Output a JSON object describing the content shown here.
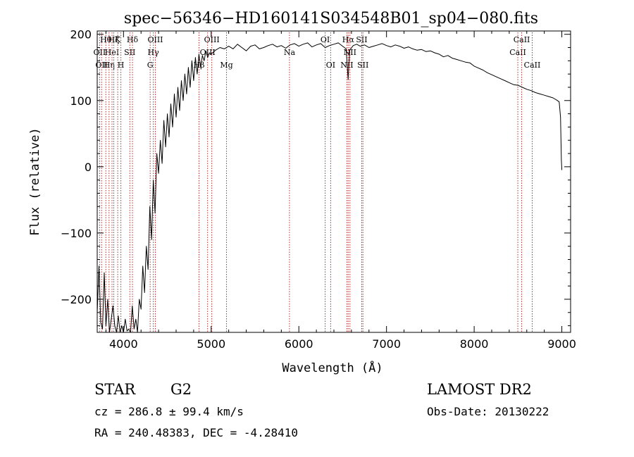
{
  "chart_data": {
    "type": "line",
    "title": "spec−56346−HD160141S034548B01_sp04−080.fits",
    "xlabel": "Wavelength (Å)",
    "ylabel": "Flux (relative)",
    "xlim": [
      3700,
      9100
    ],
    "ylim": [
      -250,
      205
    ],
    "x_ticks": [
      4000,
      5000,
      6000,
      7000,
      8000,
      9000
    ],
    "x_tick_labels": [
      "4000",
      "5000",
      "6000",
      "7000",
      "8000",
      "9000"
    ],
    "y_ticks": [
      -200,
      -100,
      0,
      100,
      200
    ],
    "y_tick_labels": [
      "−200",
      "−100",
      "0",
      "100",
      "200"
    ],
    "grid": false,
    "line_color": "#000000",
    "marker_color": "#b03030",
    "series": [
      {
        "x": [
          3700,
          3720,
          3740,
          3760,
          3780,
          3800,
          3820,
          3840,
          3860,
          3880,
          3900,
          3920,
          3940,
          3960,
          3980,
          4000,
          4020,
          4040,
          4060,
          4080,
          4100,
          4120,
          4140,
          4160,
          4180,
          4200,
          4220,
          4240,
          4260,
          4280,
          4300,
          4320,
          4340,
          4360,
          4380,
          4400,
          4420,
          4440,
          4460,
          4480,
          4500,
          4520,
          4540,
          4560,
          4580,
          4600,
          4620,
          4640,
          4660,
          4680,
          4700,
          4720,
          4740,
          4760,
          4780,
          4800,
          4820,
          4840,
          4860,
          4880,
          4900,
          4920,
          4940,
          4960,
          4980,
          5000,
          5050,
          5100,
          5150,
          5200,
          5250,
          5300,
          5350,
          5400,
          5450,
          5500,
          5550,
          5600,
          5650,
          5700,
          5750,
          5800,
          5850,
          5900,
          5950,
          6000,
          6050,
          6100,
          6150,
          6200,
          6250,
          6300,
          6350,
          6400,
          6450,
          6500,
          6540,
          6562,
          6580,
          6620,
          6660,
          6700,
          6750,
          6800,
          6850,
          6900,
          6950,
          7000,
          7050,
          7100,
          7150,
          7200,
          7250,
          7300,
          7350,
          7400,
          7450,
          7500,
          7550,
          7600,
          7650,
          7700,
          7750,
          7800,
          7850,
          7900,
          7950,
          8000,
          8050,
          8100,
          8150,
          8200,
          8250,
          8300,
          8350,
          8400,
          8450,
          8500,
          8550,
          8600,
          8650,
          8700,
          8750,
          8800,
          8850,
          8900,
          8950,
          8970,
          8985,
          8995,
          9000
        ],
        "y": [
          -220,
          -150,
          -235,
          -245,
          -160,
          -240,
          -200,
          -250,
          -230,
          -210,
          -240,
          -250,
          -225,
          -250,
          -240,
          -250,
          -230,
          -248,
          -245,
          -250,
          -210,
          -245,
          -230,
          -250,
          -200,
          -215,
          -150,
          -190,
          -120,
          -155,
          -60,
          -110,
          -20,
          -70,
          20,
          -10,
          40,
          5,
          70,
          30,
          80,
          45,
          95,
          60,
          110,
          75,
          120,
          85,
          130,
          100,
          140,
          110,
          150,
          120,
          160,
          130,
          165,
          140,
          170,
          150,
          168,
          160,
          175,
          165,
          172,
          170,
          176,
          180,
          178,
          182,
          178,
          185,
          180,
          175,
          182,
          184,
          178,
          180,
          183,
          185,
          181,
          183,
          179,
          184,
          186,
          182,
          185,
          187,
          181,
          184,
          186,
          180,
          183,
          185,
          187,
          182,
          178,
          132,
          176,
          183,
          185,
          182,
          184,
          180,
          182,
          184,
          186,
          183,
          181,
          184,
          182,
          179,
          181,
          178,
          176,
          177,
          174,
          175,
          172,
          170,
          166,
          168,
          164,
          162,
          160,
          158,
          157,
          152,
          149,
          146,
          142,
          139,
          136,
          133,
          130,
          127,
          124,
          123,
          120,
          117,
          115,
          112,
          110,
          108,
          106,
          104,
          100,
          98,
          75,
          10,
          -5
        ]
      }
    ],
    "line_markers": [
      {
        "x": 3727,
        "label": "OII",
        "row": 1
      },
      {
        "x": 3750,
        "label": "OII",
        "row": 2
      },
      {
        "x": 3798,
        "label": "Hθ",
        "row": 0
      },
      {
        "x": 3835,
        "label": "Hη",
        "row": 2
      },
      {
        "x": 3869,
        "label": "HeI",
        "row": 1
      },
      {
        "x": 3889,
        "label": "Hζ",
        "row": 0
      },
      {
        "x": 3934,
        "label": "K",
        "row": 0
      },
      {
        "x": 3970,
        "label": "H",
        "row": 2
      },
      {
        "x": 4072,
        "label": "SII",
        "row": 1
      },
      {
        "x": 4102,
        "label": "Hδ",
        "row": 0
      },
      {
        "x": 4304,
        "label": "G",
        "row": 2
      },
      {
        "x": 4340,
        "label": "Hγ",
        "row": 1
      },
      {
        "x": 4363,
        "label": "OIII",
        "row": 0
      },
      {
        "x": 4861,
        "label": "Hβ",
        "row": 2
      },
      {
        "x": 4959,
        "label": "OIII",
        "row": 1
      },
      {
        "x": 5007,
        "label": "OIII",
        "row": 0
      },
      {
        "x": 5175,
        "label": "Mg",
        "row": 2
      },
      {
        "x": 5893,
        "label": "Na",
        "row": 1
      },
      {
        "x": 6300,
        "label": "OI",
        "row": 0
      },
      {
        "x": 6363,
        "label": "OI",
        "row": 2
      },
      {
        "x": 6548,
        "label": "NII",
        "row": 2
      },
      {
        "x": 6563,
        "label": "Hα",
        "row": 0
      },
      {
        "x": 6583,
        "label": "NII",
        "row": 1
      },
      {
        "x": 6717,
        "label": "SII",
        "row": 0
      },
      {
        "x": 6731,
        "label": "SII",
        "row": 2
      },
      {
        "x": 8498,
        "label": "CaII",
        "row": 1
      },
      {
        "x": 8542,
        "label": "CaII",
        "row": 0
      },
      {
        "x": 8662,
        "label": "CaII",
        "row": 2
      }
    ]
  },
  "info": {
    "object_class": "STAR",
    "subclass": "G2",
    "survey": "LAMOST DR2",
    "velocity": "cz = 286.8 ± 99.4 km/s",
    "obs_date": "Obs-Date: 20130222",
    "coords": "RA = 240.48383, DEC =  -4.28410"
  }
}
